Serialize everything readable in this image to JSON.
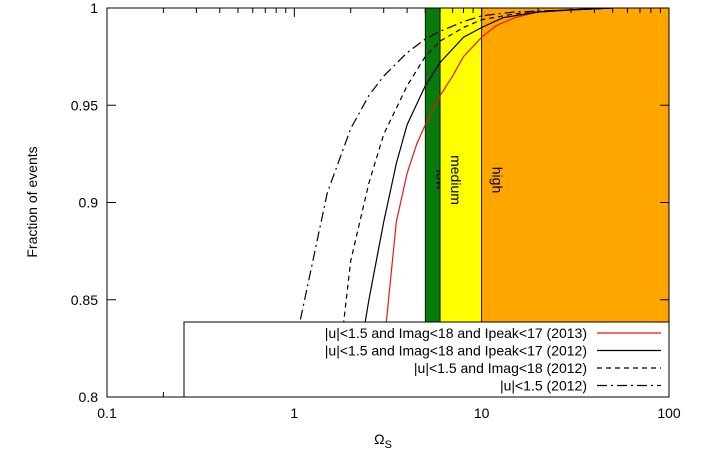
{
  "chart_data": {
    "type": "line",
    "xlabel": "Ω",
    "xlabel_sub": "S",
    "ylabel": "Fraction of events",
    "x_scale": "log",
    "xlim": [
      0.1,
      100
    ],
    "ylim": [
      0.8,
      1.0
    ],
    "x_ticks": [
      {
        "value": 0.1,
        "label": "0.1"
      },
      {
        "value": 1,
        "label": "1"
      },
      {
        "value": 10,
        "label": "10"
      },
      {
        "value": 100,
        "label": "100"
      }
    ],
    "y_ticks": [
      {
        "value": 0.8,
        "label": "0.8"
      },
      {
        "value": 0.85,
        "label": "0.85"
      },
      {
        "value": 0.9,
        "label": "0.9"
      },
      {
        "value": 0.95,
        "label": "0.95"
      },
      {
        "value": 1.0,
        "label": "1"
      }
    ],
    "regions": [
      {
        "name": "low",
        "label": "low",
        "x_start": 5,
        "x_end": 6,
        "color": "#0a7a0a"
      },
      {
        "name": "medium",
        "label": "medium",
        "x_start": 6,
        "x_end": 10,
        "color": "#ffff00"
      },
      {
        "name": "high",
        "label": "high",
        "x_start": 10,
        "x_end": 100,
        "color": "#ffa500"
      }
    ],
    "legend_position": "bottom-right",
    "series": [
      {
        "name": "|u|<1.5 and Imag<18 and Ipeak<17 (2013)",
        "color": "#e8171b",
        "dash": "solid",
        "x": [
          2.75,
          3.0,
          3.5,
          4.0,
          4.5,
          5.0,
          6.0,
          7.0,
          8.0,
          10.0,
          12.0,
          15.0,
          20.0,
          30.0,
          50.0
        ],
        "y": [
          0.8,
          0.825,
          0.89,
          0.915,
          0.93,
          0.94,
          0.955,
          0.965,
          0.975,
          0.985,
          0.991,
          0.995,
          0.998,
          0.999,
          1.0
        ]
      },
      {
        "name": "|u|<1.5 and Imag<18 and Ipeak<17 (2012)",
        "color": "#000000",
        "dash": "solid",
        "x": [
          2.05,
          2.5,
          3.0,
          3.5,
          4.0,
          5.0,
          6.0,
          8.0,
          10.0,
          13.0,
          20.0,
          30.0,
          50.0
        ],
        "y": [
          0.8,
          0.85,
          0.89,
          0.92,
          0.94,
          0.96,
          0.972,
          0.985,
          0.99,
          0.995,
          0.998,
          0.999,
          1.0
        ]
      },
      {
        "name": "|u|<1.5 and Imag<18 (2012)",
        "color": "#000000",
        "dash": "dashed",
        "x": [
          1.65,
          2.0,
          2.5,
          3.0,
          4.0,
          5.0,
          6.0,
          8.0,
          10.0,
          15.0,
          30.0,
          50.0
        ],
        "y": [
          0.8,
          0.87,
          0.91,
          0.935,
          0.96,
          0.975,
          0.983,
          0.99,
          0.994,
          0.997,
          0.999,
          1.0
        ]
      },
      {
        "name": "|u|<1.5 (2012)",
        "color": "#000000",
        "dash": "dashdot",
        "x": [
          0.85,
          1.0,
          1.5,
          2.0,
          2.5,
          3.0,
          4.0,
          5.0,
          6.0,
          8.0,
          10.0,
          15.0,
          30.0,
          50.0
        ],
        "y": [
          0.8,
          0.825,
          0.905,
          0.938,
          0.955,
          0.965,
          0.977,
          0.984,
          0.988,
          0.993,
          0.996,
          0.998,
          0.999,
          1.0
        ]
      }
    ]
  }
}
